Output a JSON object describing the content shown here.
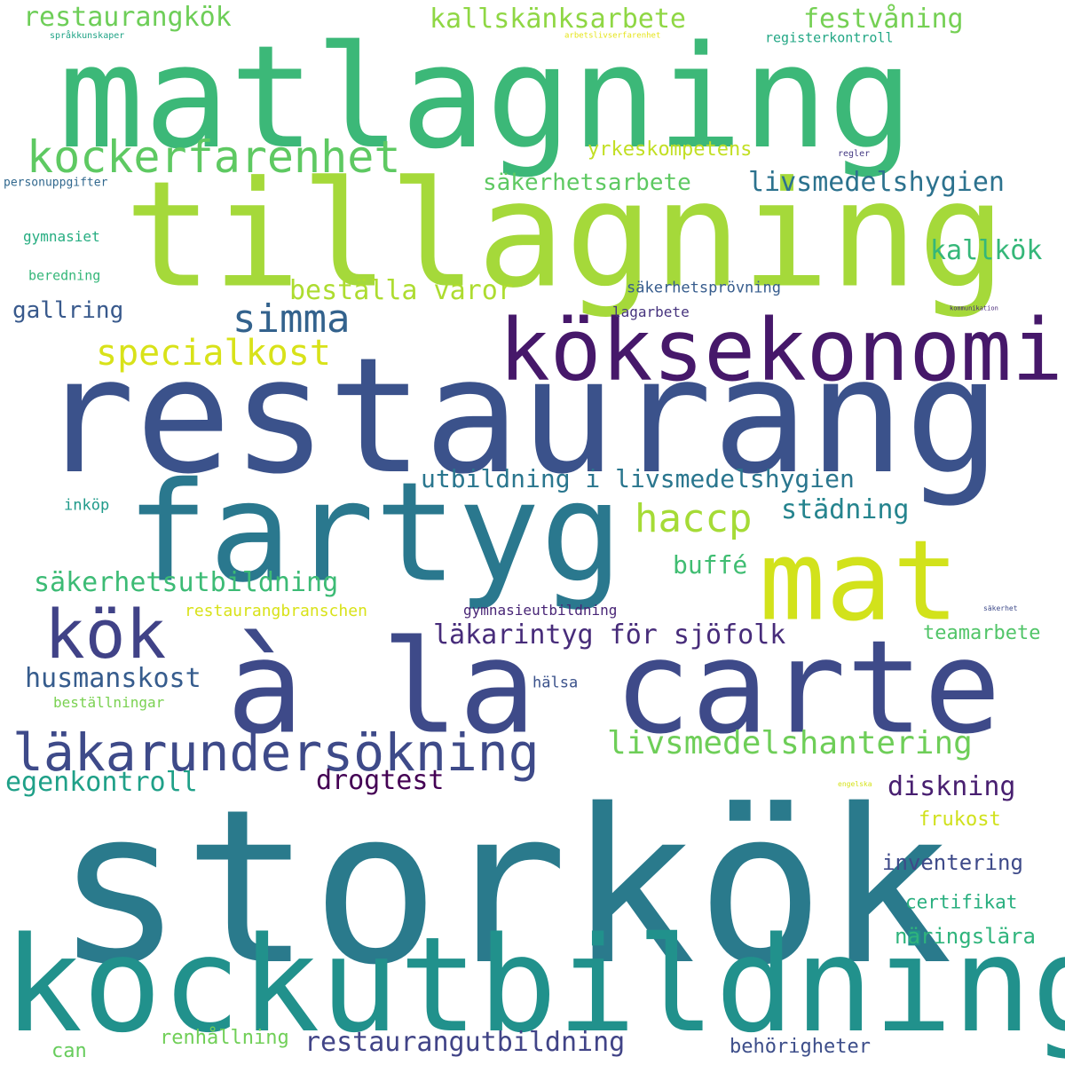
{
  "words": [
    {
      "text": "storkök",
      "color": "#2a7a8c"
    },
    {
      "text": "restaurang",
      "color": "#3b528b"
    },
    {
      "text": "kockutbildning",
      "color": "#21918c"
    },
    {
      "text": "matlagning",
      "color": "#3cb878"
    },
    {
      "text": "tillagning",
      "color": "#a5d93a"
    },
    {
      "text": "à la carte",
      "color": "#3e4a89"
    },
    {
      "text": "fartyg",
      "color": "#2a788e"
    },
    {
      "text": "köksekonomi",
      "color": "#46186a"
    },
    {
      "text": "mat",
      "color": "#d2e21b"
    },
    {
      "text": "kök",
      "color": "#404287"
    },
    {
      "text": "läkarundersökning",
      "color": "#3e4a89"
    },
    {
      "text": "kockerfarenhet",
      "color": "#5ec962"
    },
    {
      "text": "simma",
      "color": "#33628d"
    },
    {
      "text": "haccp",
      "color": "#a5db36"
    },
    {
      "text": "specialkost",
      "color": "#d8e219"
    },
    {
      "text": "restaurangkök",
      "color": "#6ece58"
    },
    {
      "text": "kallskänksarbete",
      "color": "#8fd744"
    },
    {
      "text": "festvåning",
      "color": "#75d054"
    },
    {
      "text": "livsmedelshygien",
      "color": "#2c728e"
    },
    {
      "text": "säkerhetsarbete",
      "color": "#5ec962"
    },
    {
      "text": "yrkeskompetens",
      "color": "#c2df23"
    },
    {
      "text": "kallkök",
      "color": "#35b779"
    },
    {
      "text": "beställa varor",
      "color": "#addc30"
    },
    {
      "text": "utbildning i livsmedelshygien",
      "color": "#2a768e"
    },
    {
      "text": "städning",
      "color": "#25848e"
    },
    {
      "text": "säkerhetsutbildning",
      "color": "#3cbb75"
    },
    {
      "text": "buffé",
      "color": "#40bd72"
    },
    {
      "text": "läkarintyg för sjöfolk",
      "color": "#472c7a"
    },
    {
      "text": "husmanskost",
      "color": "#365c8d"
    },
    {
      "text": "livsmedelshantering",
      "color": "#6ece58"
    },
    {
      "text": "drogtest",
      "color": "#440154"
    },
    {
      "text": "egenkontroll",
      "color": "#1fa088"
    },
    {
      "text": "diskning",
      "color": "#481f70"
    },
    {
      "text": "restaurangutbildning",
      "color": "#414487"
    },
    {
      "text": "gallring",
      "color": "#38598c"
    },
    {
      "text": "inventering",
      "color": "#3e4a89"
    },
    {
      "text": "näringslära",
      "color": "#2fb47c"
    },
    {
      "text": "certifikat",
      "color": "#29af7f"
    },
    {
      "text": "frukost",
      "color": "#d0e11c"
    },
    {
      "text": "teamarbete",
      "color": "#52c569"
    },
    {
      "text": "behörigheter",
      "color": "#3d4e8a"
    },
    {
      "text": "renhållning",
      "color": "#70cf57"
    },
    {
      "text": "can",
      "color": "#67cc5c"
    },
    {
      "text": "restaurangbranschen",
      "color": "#d8e219"
    },
    {
      "text": "gymnasieutbildning",
      "color": "#482576"
    },
    {
      "text": "lagarbete",
      "color": "#46337e"
    },
    {
      "text": "säkerhetsprövning",
      "color": "#365c8d"
    },
    {
      "text": "hälsa",
      "color": "#3b528b"
    },
    {
      "text": "beställningar",
      "color": "#7ad151"
    },
    {
      "text": "inköp",
      "color": "#1f9a8a"
    },
    {
      "text": "gymnasiet",
      "color": "#26ad81"
    },
    {
      "text": "beredning",
      "color": "#35b779"
    },
    {
      "text": "personuppgifter",
      "color": "#31688e"
    },
    {
      "text": "språkkunskaper",
      "color": "#20a386"
    },
    {
      "text": "arbetslivserfarenhet",
      "color": "#e5e419"
    },
    {
      "text": "registerkontroll",
      "color": "#22a785"
    },
    {
      "text": "regler",
      "color": "#443983"
    },
    {
      "text": "kommunikation",
      "color": "#482878"
    },
    {
      "text": "säkerhet",
      "color": "#3e4a89"
    },
    {
      "text": "engelska",
      "color": "#d5e21a"
    }
  ]
}
